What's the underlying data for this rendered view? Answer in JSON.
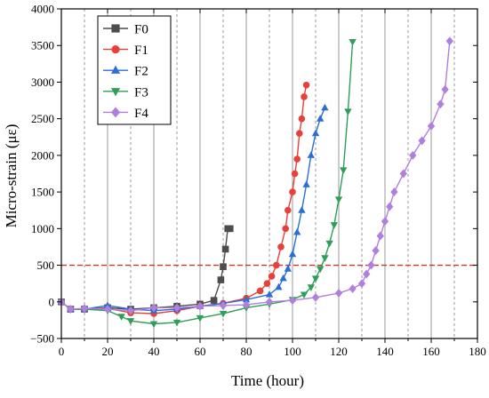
{
  "chart_data": {
    "type": "line",
    "title": "",
    "xlabel": "Time (hour)",
    "ylabel": "Micro-strain (με)",
    "xlim": [
      0,
      180
    ],
    "ylim": [
      -500,
      4000
    ],
    "xticks": [
      0,
      20,
      40,
      60,
      80,
      100,
      120,
      140,
      160,
      180
    ],
    "yticks": [
      -500,
      0,
      500,
      1000,
      1500,
      2000,
      2500,
      3000,
      3500,
      4000
    ],
    "grid": {
      "vertical_solid": [
        20,
        40,
        60,
        80,
        100,
        120,
        140,
        160
      ],
      "vertical_dashed": [
        10,
        30,
        50,
        70,
        90,
        110,
        130,
        150,
        170
      ]
    },
    "threshold": {
      "y": 500,
      "color": "#c0392b",
      "style": "dashed"
    },
    "legend_position": "top-left",
    "series": [
      {
        "name": "F0",
        "color": "#4d4d4d",
        "marker": "square",
        "x": [
          0,
          4,
          10,
          20,
          30,
          40,
          50,
          60,
          66,
          69,
          70,
          71,
          72,
          73
        ],
        "y": [
          0,
          -100,
          -100,
          -80,
          -100,
          -80,
          -60,
          -30,
          20,
          300,
          480,
          720,
          1000,
          1000
        ]
      },
      {
        "name": "F1",
        "color": "#e8403a",
        "marker": "circle",
        "x": [
          0,
          4,
          10,
          20,
          30,
          40,
          50,
          60,
          70,
          80,
          86,
          89,
          91,
          93,
          95,
          97,
          98,
          100,
          101,
          102,
          103,
          104,
          105,
          106
        ],
        "y": [
          0,
          -100,
          -100,
          -90,
          -150,
          -160,
          -120,
          -60,
          -20,
          50,
          150,
          250,
          350,
          500,
          750,
          1000,
          1250,
          1500,
          1750,
          1950,
          2300,
          2500,
          2800,
          2960
        ]
      },
      {
        "name": "F2",
        "color": "#2b6fd6",
        "marker": "triangle-up",
        "x": [
          0,
          4,
          10,
          20,
          30,
          40,
          50,
          60,
          70,
          80,
          90,
          94,
          96,
          98,
          100,
          102,
          104,
          106,
          108,
          110,
          112,
          114
        ],
        "y": [
          0,
          -100,
          -100,
          -50,
          -100,
          -120,
          -100,
          -60,
          -20,
          30,
          100,
          200,
          320,
          450,
          650,
          950,
          1250,
          1600,
          2000,
          2300,
          2500,
          2650
        ]
      },
      {
        "name": "F3",
        "color": "#2e9e58",
        "marker": "triangle-down",
        "x": [
          0,
          4,
          10,
          20,
          26,
          30,
          40,
          50,
          60,
          70,
          80,
          90,
          100,
          105,
          108,
          110,
          112,
          114,
          116,
          118,
          120,
          122,
          124,
          126
        ],
        "y": [
          0,
          -100,
          -100,
          -120,
          -200,
          -260,
          -300,
          -280,
          -220,
          -160,
          -80,
          -30,
          30,
          100,
          200,
          320,
          450,
          600,
          800,
          1050,
          1400,
          1800,
          2600,
          3550
        ]
      },
      {
        "name": "F4",
        "color": "#b07fe0",
        "marker": "diamond",
        "x": [
          0,
          4,
          10,
          20,
          30,
          40,
          50,
          60,
          70,
          80,
          90,
          100,
          110,
          120,
          126,
          130,
          132,
          134,
          136,
          138,
          140,
          142,
          144,
          148,
          152,
          156,
          160,
          164,
          166,
          168
        ],
        "y": [
          0,
          -100,
          -90,
          -100,
          -120,
          -80,
          -80,
          -60,
          -50,
          -40,
          0,
          20,
          60,
          120,
          180,
          250,
          380,
          500,
          700,
          900,
          1100,
          1300,
          1500,
          1750,
          2000,
          2200,
          2400,
          2700,
          2900,
          3560
        ]
      }
    ]
  }
}
